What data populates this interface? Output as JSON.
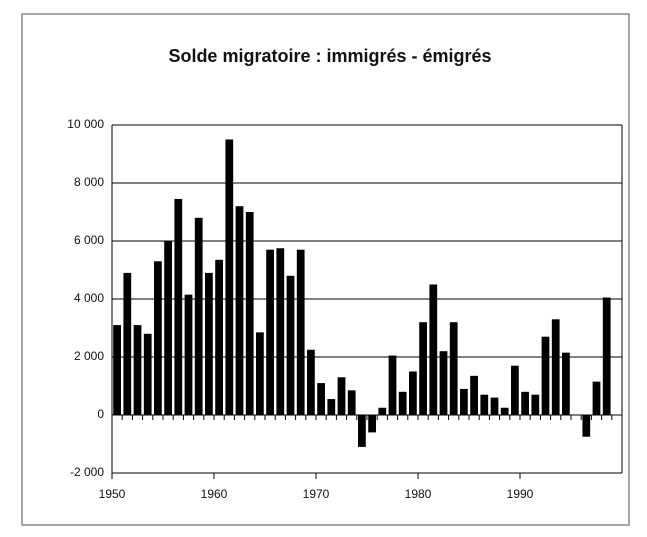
{
  "chart_data": {
    "type": "bar",
    "title": "Solde migratoire : immigrés - émigrés",
    "x": [
      1951,
      1952,
      1953,
      1954,
      1955,
      1956,
      1957,
      1958,
      1959,
      1960,
      1961,
      1962,
      1963,
      1964,
      1965,
      1966,
      1967,
      1968,
      1969,
      1970,
      1971,
      1972,
      1973,
      1974,
      1975,
      1976,
      1977,
      1978,
      1979,
      1980,
      1981,
      1982,
      1983,
      1984,
      1985,
      1986,
      1987,
      1988,
      1989,
      1990,
      1991,
      1992,
      1993,
      1994,
      1995,
      1996,
      1997,
      1998,
      1999
    ],
    "values": [
      3100,
      4900,
      3100,
      2800,
      5300,
      6000,
      7450,
      4150,
      6800,
      4900,
      5350,
      9500,
      7200,
      7000,
      2850,
      5700,
      5750,
      4800,
      5700,
      2250,
      1100,
      550,
      1300,
      850,
      -1100,
      -600,
      250,
      2050,
      800,
      1500,
      3200,
      4500,
      2200,
      3200,
      900,
      1350,
      700,
      600,
      250,
      1700,
      800,
      700,
      2700,
      3300,
      2150,
      0,
      -750,
      1150,
      4050
    ],
    "color": "#000000",
    "xlim": [
      1950,
      2000
    ],
    "xticks": [
      1950,
      1960,
      1970,
      1980,
      1990
    ],
    "ylim": [
      -2000,
      10000
    ],
    "yticks": [
      {
        "value": -2000,
        "label": "-2 000"
      },
      0,
      {
        "value": 2000,
        "label": "2 000"
      },
      {
        "value": 4000,
        "label": "4 000"
      },
      {
        "value": 6000,
        "label": "6 000"
      },
      {
        "value": 8000,
        "label": "8 000"
      },
      {
        "value": 10000,
        "label": "10 000"
      }
    ],
    "grid": true
  }
}
